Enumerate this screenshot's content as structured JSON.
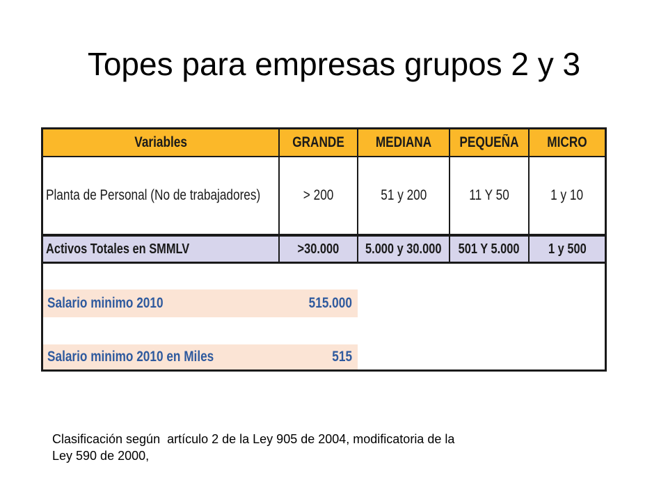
{
  "slide": {
    "title": "Topes para empresas grupos 2 y 3",
    "footnote_line1": "Clasificación según  artículo 2 de la Ley 905 de 2004, modificatoria de la",
    "footnote_line2": "Ley 590 de 2000,"
  },
  "table": {
    "headers": {
      "variables": "Variables",
      "grande": "GRANDE",
      "mediana": "MEDIANA",
      "pequena": "PEQUEÑA",
      "micro": "MICRO"
    },
    "planta": {
      "label": "Planta de Personal (No de trabajadores)",
      "grande": "> 200",
      "mediana": "51 y 200",
      "pequena": "11 Y 50",
      "micro": "1  y 10"
    },
    "activos": {
      "label": "Activos Totales en SMMLV",
      "grande": ">30.000",
      "mediana": "5.000 y 30.000",
      "pequena": "501 Y 5.000",
      "micro": "1 y 500"
    },
    "salario": {
      "label": "Salario minimo 2010",
      "value": "515.000"
    },
    "salario_miles": {
      "label": "Salario minimo 2010 en Miles",
      "value": "515"
    }
  },
  "colors": {
    "header_fill": "#fbb829",
    "totals_fill": "#d7d5ec",
    "salary_fill": "#fbe4d5",
    "salary_text": "#2f5a9e"
  }
}
